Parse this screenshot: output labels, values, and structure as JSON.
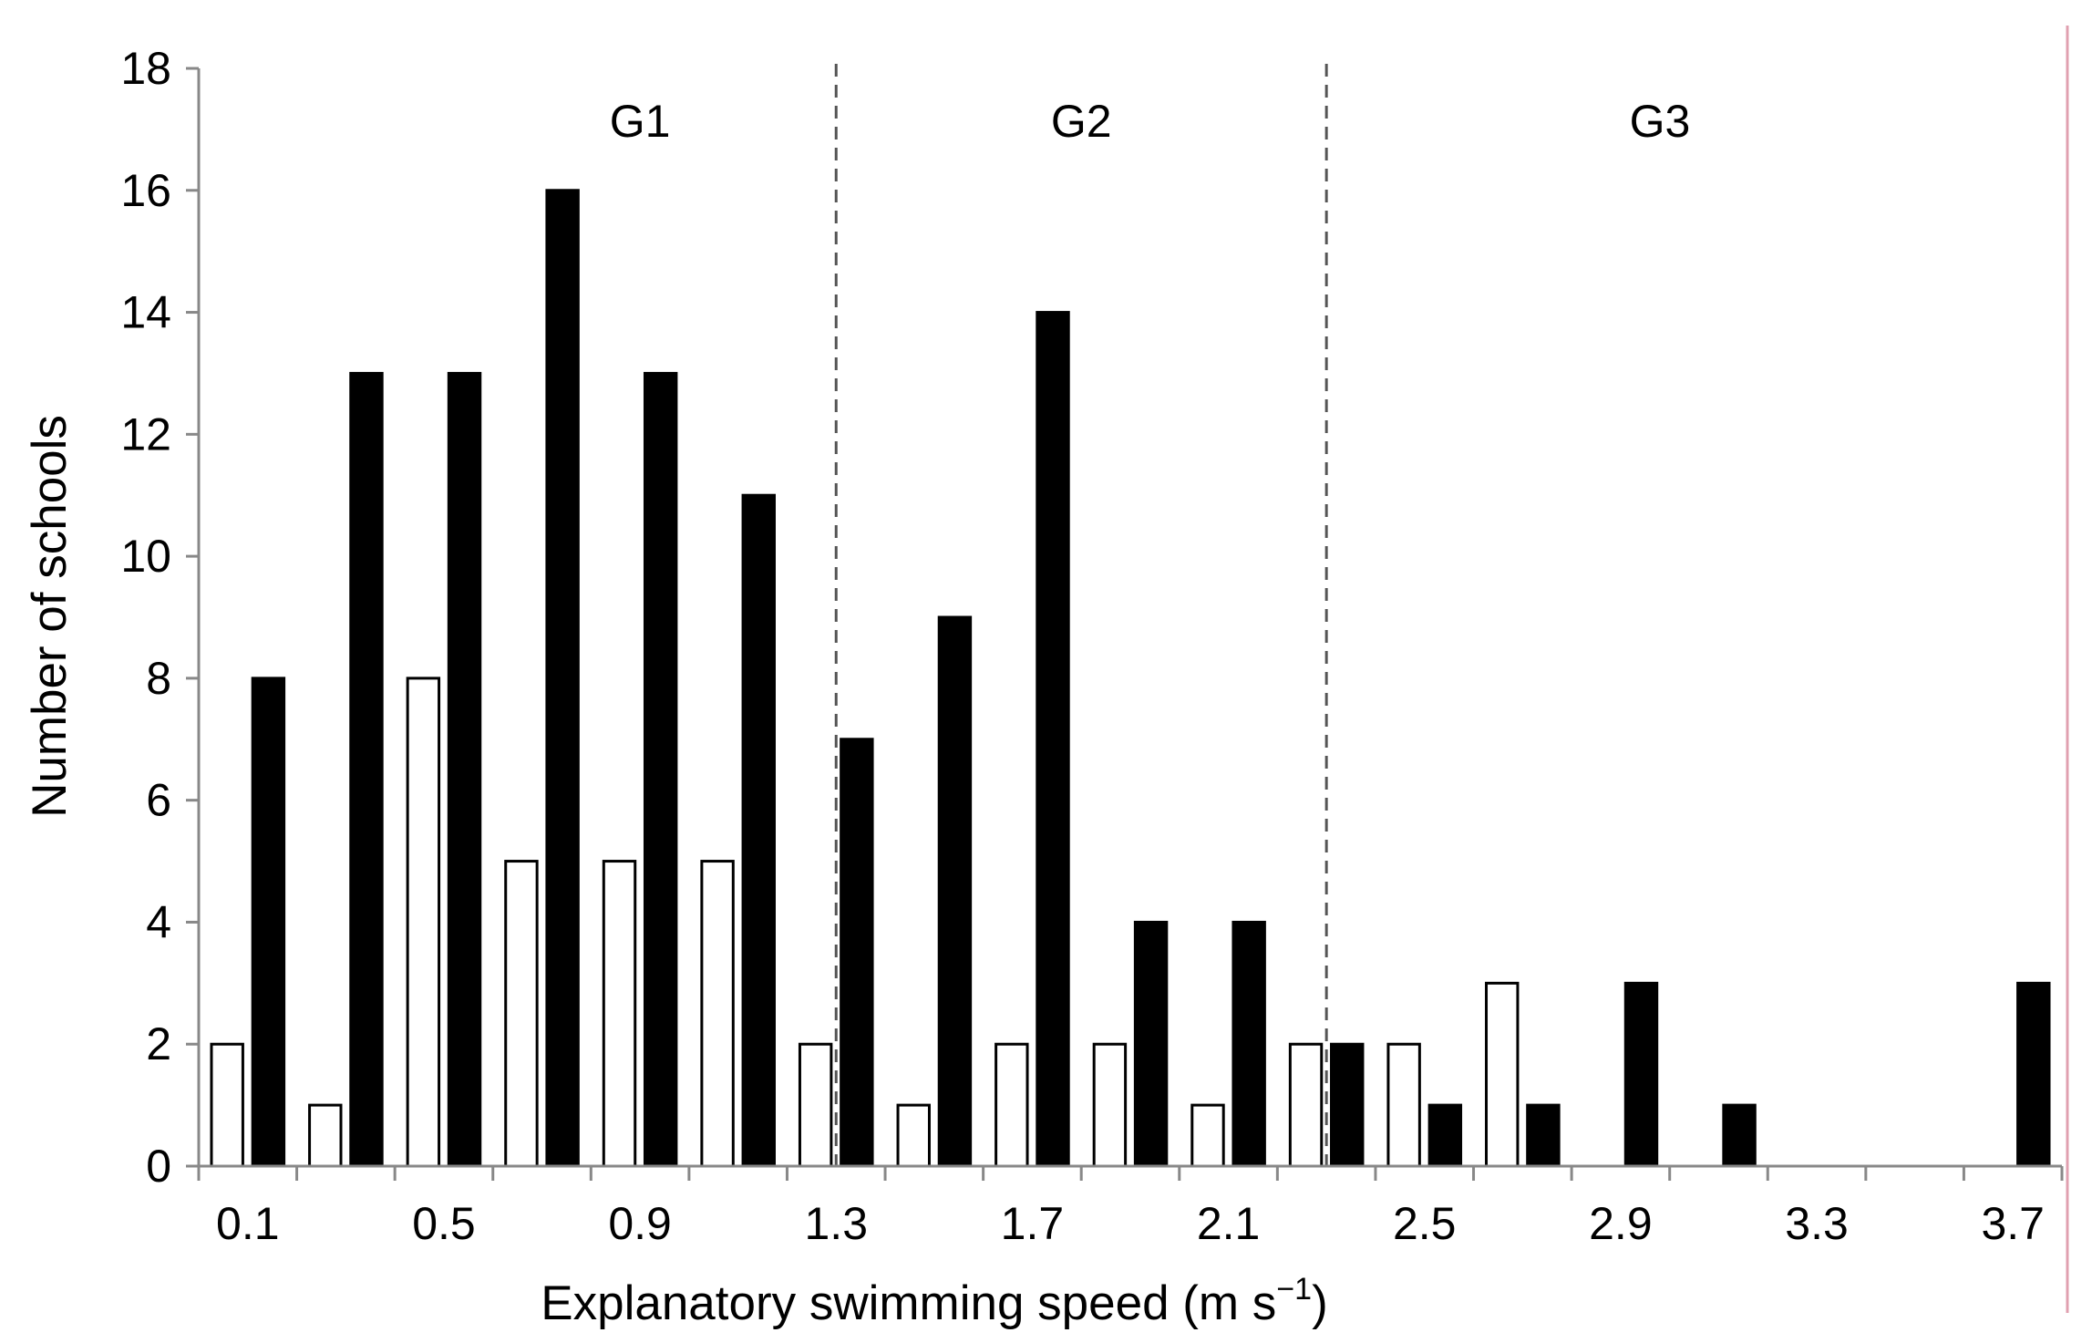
{
  "chart_data": {
    "type": "bar",
    "xlabel": "Explanatory swimming speed (m s",
    "xlabel_superscript": "−1",
    "xlabel_suffix": ")",
    "ylabel": "Number of schools",
    "ylim": [
      0,
      18
    ],
    "yticks": [
      "0",
      "2",
      "4",
      "6",
      "8",
      "10",
      "12",
      "14",
      "16",
      "18"
    ],
    "categories": [
      "0.1",
      "0.3",
      "0.5",
      "0.7",
      "0.9",
      "1.1",
      "1.3",
      "1.5",
      "1.7",
      "1.9",
      "2.1",
      "2.3",
      "2.5",
      "2.7",
      "2.9",
      "3.1",
      "3.3",
      "3.5",
      "3.7"
    ],
    "xtick_labels": [
      "0.1",
      "0.5",
      "0.9",
      "1.3",
      "1.7",
      "2.1",
      "2.5",
      "2.9",
      "3.3",
      "3.7"
    ],
    "series": [
      {
        "name": "open",
        "color": "#ffffff",
        "values": [
          2,
          1,
          8,
          5,
          5,
          5,
          2,
          1,
          2,
          2,
          1,
          2,
          2,
          3,
          0,
          0,
          0,
          0,
          0
        ]
      },
      {
        "name": "filled",
        "color": "#000000",
        "values": [
          8,
          13,
          13,
          16,
          13,
          11,
          7,
          9,
          14,
          4,
          4,
          2,
          1,
          1,
          3,
          1,
          0,
          0,
          3
        ]
      }
    ],
    "groups": [
      {
        "label": "G1",
        "center_speed": 0.9
      },
      {
        "label": "G2",
        "center_speed": 1.8
      },
      {
        "label": "G3",
        "center_speed": 2.98
      }
    ],
    "dividers": [
      1.2,
      2.2
    ]
  }
}
